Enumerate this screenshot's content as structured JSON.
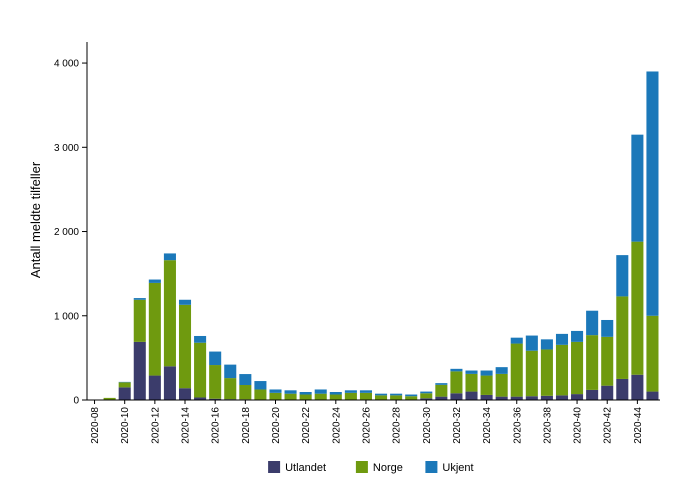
{
  "chart_data": {
    "type": "bar",
    "stacked": true,
    "title": "",
    "xlabel": "",
    "ylabel": "Antall meldte tilfeller",
    "ylim": [
      0,
      4250
    ],
    "yticks": [
      0,
      1000,
      2000,
      3000,
      4000
    ],
    "ytick_labels": [
      "0",
      "1 000",
      "2 000",
      "3 000",
      "4 000"
    ],
    "categories": [
      "2020-08",
      "2020-09",
      "2020-10",
      "2020-11",
      "2020-12",
      "2020-13",
      "2020-14",
      "2020-15",
      "2020-16",
      "2020-17",
      "2020-18",
      "2020-19",
      "2020-20",
      "2020-21",
      "2020-22",
      "2020-23",
      "2020-24",
      "2020-25",
      "2020-26",
      "2020-27",
      "2020-28",
      "2020-29",
      "2020-30",
      "2020-31",
      "2020-32",
      "2020-33",
      "2020-34",
      "2020-35",
      "2020-36",
      "2020-37",
      "2020-38",
      "2020-39",
      "2020-40",
      "2020-41",
      "2020-42",
      "2020-43",
      "2020-44",
      "2020-45"
    ],
    "xtick_labels": [
      "2020-08",
      "2020-10",
      "2020-12",
      "2020-14",
      "2020-16",
      "2020-18",
      "2020-20",
      "2020-22",
      "2020-24",
      "2020-26",
      "2020-28",
      "2020-30",
      "2020-32",
      "2020-34",
      "2020-36",
      "2020-38",
      "2020-40",
      "2020-42",
      "2020-44"
    ],
    "series": [
      {
        "name": "Utlandet",
        "color": "#3b3c6b",
        "values": [
          2,
          5,
          150,
          690,
          290,
          400,
          140,
          30,
          15,
          10,
          8,
          5,
          5,
          5,
          5,
          5,
          5,
          5,
          5,
          5,
          5,
          5,
          20,
          40,
          80,
          100,
          60,
          40,
          40,
          45,
          50,
          55,
          70,
          120,
          170,
          250,
          300,
          100
        ]
      },
      {
        "name": "Norge",
        "color": "#6f9a0f",
        "values": [
          0,
          20,
          60,
          500,
          1100,
          1260,
          990,
          650,
          400,
          250,
          170,
          120,
          80,
          70,
          60,
          70,
          60,
          80,
          80,
          50,
          50,
          40,
          60,
          140,
          260,
          210,
          230,
          270,
          630,
          540,
          550,
          600,
          620,
          650,
          580,
          980,
          1580,
          900
        ]
      },
      {
        "name": "Ukjent",
        "color": "#1b78b9",
        "values": [
          0,
          0,
          5,
          20,
          40,
          80,
          60,
          80,
          160,
          160,
          130,
          100,
          40,
          40,
          30,
          50,
          30,
          30,
          30,
          20,
          20,
          20,
          20,
          20,
          30,
          40,
          60,
          80,
          70,
          180,
          120,
          130,
          130,
          290,
          200,
          490,
          1270,
          2900
        ]
      }
    ],
    "legend": {
      "position": "bottom-center",
      "entries": [
        "Utlandet",
        "Norge",
        "Ukjent"
      ]
    }
  }
}
